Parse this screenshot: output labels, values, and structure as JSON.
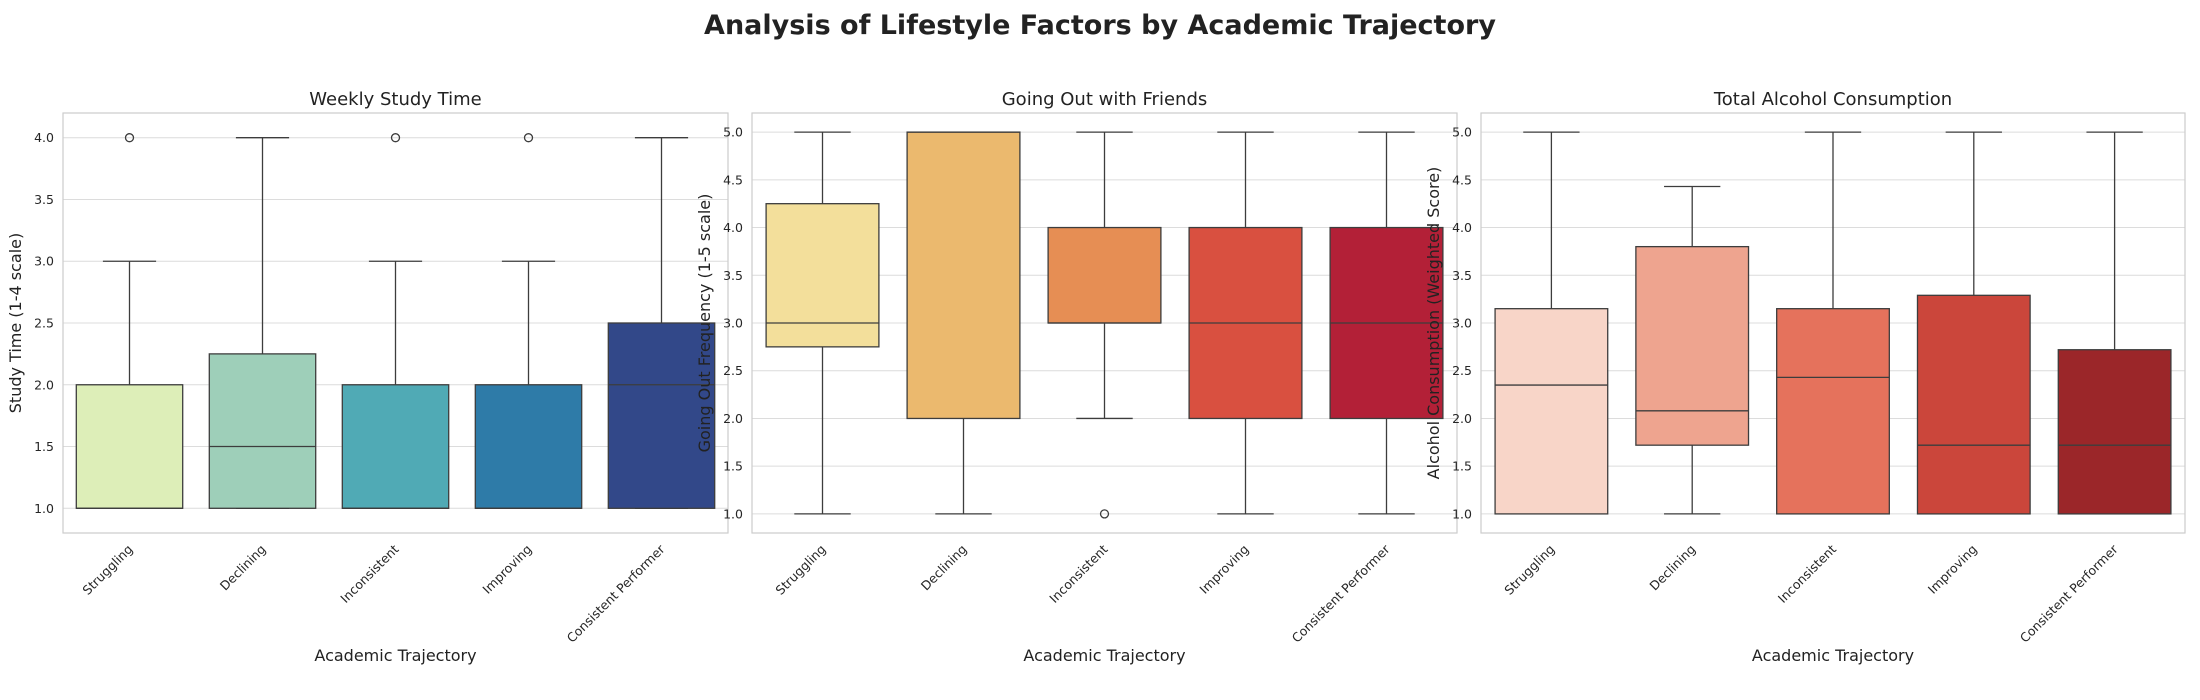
{
  "figure": {
    "title": "Analysis of Lifestyle Factors by Academic Trajectory"
  },
  "chart_data": [
    {
      "type": "box",
      "title": "Weekly Study Time",
      "xlabel": "Academic Trajectory",
      "ylabel": "Study Time (1-4 scale)",
      "categories": [
        "Struggling",
        "Declining",
        "Inconsistent",
        "Improving",
        "Consistent Performer"
      ],
      "ylim": [
        0.8,
        4.2
      ],
      "yticks": [
        1.0,
        1.5,
        2.0,
        2.5,
        3.0,
        3.5,
        4.0
      ],
      "grid": true,
      "colors": [
        "#ddeeb8",
        "#9ecfb9",
        "#50aab5",
        "#2e7ba8",
        "#324889"
      ],
      "boxes": [
        {
          "whislo": 1.0,
          "q1": 1.0,
          "med": 1.0,
          "q3": 2.0,
          "whishi": 3.0,
          "fliers": [
            4.0
          ]
        },
        {
          "whislo": 1.0,
          "q1": 1.0,
          "med": 1.5,
          "q3": 2.25,
          "whishi": 4.0,
          "fliers": []
        },
        {
          "whislo": 1.0,
          "q1": 1.0,
          "med": 1.0,
          "q3": 2.0,
          "whishi": 3.0,
          "fliers": [
            4.0
          ]
        },
        {
          "whislo": 1.0,
          "q1": 1.0,
          "med": 1.0,
          "q3": 2.0,
          "whishi": 3.0,
          "fliers": [
            4.0
          ]
        },
        {
          "whislo": 1.0,
          "q1": 1.0,
          "med": 2.0,
          "q3": 2.5,
          "whishi": 4.0,
          "fliers": []
        }
      ]
    },
    {
      "type": "box",
      "title": "Going Out with Friends",
      "xlabel": "Academic Trajectory",
      "ylabel": "Going Out Frequency (1-5 scale)",
      "categories": [
        "Struggling",
        "Declining",
        "Inconsistent",
        "Improving",
        "Consistent Performer"
      ],
      "ylim": [
        0.8,
        5.2
      ],
      "yticks": [
        1.0,
        1.5,
        2.0,
        2.5,
        3.0,
        3.5,
        4.0,
        4.5,
        5.0
      ],
      "grid": true,
      "colors": [
        "#f3df9b",
        "#ebb96e",
        "#e68e54",
        "#d95040",
        "#b32037"
      ],
      "boxes": [
        {
          "whislo": 1.0,
          "q1": 2.75,
          "med": 3.0,
          "q3": 4.25,
          "whishi": 5.0,
          "fliers": []
        },
        {
          "whislo": 1.0,
          "q1": 2.0,
          "med": 5.0,
          "q3": 5.0,
          "whishi": 5.0,
          "fliers": []
        },
        {
          "whislo": 2.0,
          "q1": 3.0,
          "med": 3.0,
          "q3": 4.0,
          "whishi": 5.0,
          "fliers": [
            1.0
          ]
        },
        {
          "whislo": 1.0,
          "q1": 2.0,
          "med": 3.0,
          "q3": 4.0,
          "whishi": 5.0,
          "fliers": []
        },
        {
          "whislo": 1.0,
          "q1": 2.0,
          "med": 3.0,
          "q3": 4.0,
          "whishi": 5.0,
          "fliers": []
        }
      ]
    },
    {
      "type": "box",
      "title": "Total Alcohol Consumption",
      "xlabel": "Academic Trajectory",
      "ylabel": "Alcohol Consumption (Weighted Score)",
      "categories": [
        "Struggling",
        "Declining",
        "Inconsistent",
        "Improving",
        "Consistent Performer"
      ],
      "ylim": [
        0.8,
        5.2
      ],
      "yticks": [
        1.0,
        1.5,
        2.0,
        2.5,
        3.0,
        3.5,
        4.0,
        4.5,
        5.0
      ],
      "grid": true,
      "colors": [
        "#f8d5c8",
        "#eea48f",
        "#e5725c",
        "#cb463b",
        "#9b2629"
      ],
      "boxes": [
        {
          "whislo": 1.0,
          "q1": 1.0,
          "med": 2.35,
          "q3": 3.15,
          "whishi": 5.0,
          "fliers": []
        },
        {
          "whislo": 1.0,
          "q1": 1.72,
          "med": 2.08,
          "q3": 3.8,
          "whishi": 4.43,
          "fliers": []
        },
        {
          "whislo": 1.0,
          "q1": 1.0,
          "med": 2.43,
          "q3": 3.15,
          "whishi": 5.0,
          "fliers": []
        },
        {
          "whislo": 1.0,
          "q1": 1.0,
          "med": 1.72,
          "q3": 3.29,
          "whishi": 5.0,
          "fliers": []
        },
        {
          "whislo": 1.0,
          "q1": 1.0,
          "med": 1.72,
          "q3": 2.72,
          "whishi": 5.0,
          "fliers": []
        }
      ]
    }
  ]
}
